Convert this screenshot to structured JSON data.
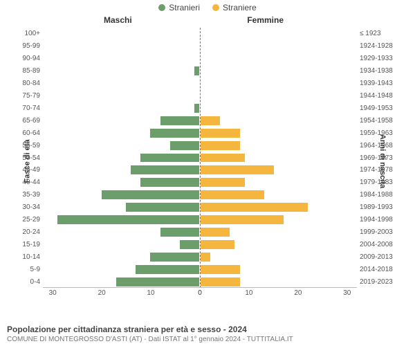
{
  "legend": {
    "male": {
      "label": "Stranieri",
      "color": "#6b9e6b"
    },
    "female": {
      "label": "Straniere",
      "color": "#f4b63f"
    }
  },
  "headers": {
    "left": "Maschi",
    "right": "Femmine"
  },
  "axis_labels": {
    "left": "Fasce di età",
    "right": "Anni di nascita"
  },
  "chart": {
    "type": "population-pyramid",
    "x_max": 32,
    "x_ticks_left": [
      30,
      20,
      10,
      0
    ],
    "x_ticks_right": [
      0,
      10,
      20,
      30
    ],
    "background_color": "#ffffff",
    "center_line_color": "#777777",
    "tick_color": "#777777",
    "bar_male_color": "#6b9e6b",
    "bar_female_color": "#f4b63f",
    "rows": [
      {
        "age": "100+",
        "birth": "≤ 1923",
        "m": 0,
        "f": 0
      },
      {
        "age": "95-99",
        "birth": "1924-1928",
        "m": 0,
        "f": 0
      },
      {
        "age": "90-94",
        "birth": "1929-1933",
        "m": 0,
        "f": 0
      },
      {
        "age": "85-89",
        "birth": "1934-1938",
        "m": 1,
        "f": 0
      },
      {
        "age": "80-84",
        "birth": "1939-1943",
        "m": 0,
        "f": 0
      },
      {
        "age": "75-79",
        "birth": "1944-1948",
        "m": 0,
        "f": 0
      },
      {
        "age": "70-74",
        "birth": "1949-1953",
        "m": 1,
        "f": 0
      },
      {
        "age": "65-69",
        "birth": "1954-1958",
        "m": 8,
        "f": 4
      },
      {
        "age": "60-64",
        "birth": "1959-1963",
        "m": 10,
        "f": 8
      },
      {
        "age": "55-59",
        "birth": "1964-1968",
        "m": 6,
        "f": 8
      },
      {
        "age": "50-54",
        "birth": "1969-1973",
        "m": 12,
        "f": 9
      },
      {
        "age": "45-49",
        "birth": "1974-1978",
        "m": 14,
        "f": 15
      },
      {
        "age": "40-44",
        "birth": "1979-1983",
        "m": 12,
        "f": 9
      },
      {
        "age": "35-39",
        "birth": "1984-1988",
        "m": 20,
        "f": 13
      },
      {
        "age": "30-34",
        "birth": "1989-1993",
        "m": 15,
        "f": 22
      },
      {
        "age": "25-29",
        "birth": "1994-1998",
        "m": 29,
        "f": 17
      },
      {
        "age": "20-24",
        "birth": "1999-2003",
        "m": 8,
        "f": 6
      },
      {
        "age": "15-19",
        "birth": "2004-2008",
        "m": 4,
        "f": 7
      },
      {
        "age": "10-14",
        "birth": "2009-2013",
        "m": 10,
        "f": 2
      },
      {
        "age": "5-9",
        "birth": "2014-2018",
        "m": 13,
        "f": 8
      },
      {
        "age": "0-4",
        "birth": "2019-2023",
        "m": 17,
        "f": 8
      }
    ]
  },
  "footer": {
    "title": "Popolazione per cittadinanza straniera per età e sesso - 2024",
    "subtitle": "COMUNE DI MONTEGROSSO D'ASTI (AT) - Dati ISTAT al 1° gennaio 2024 - TUTTITALIA.IT"
  }
}
